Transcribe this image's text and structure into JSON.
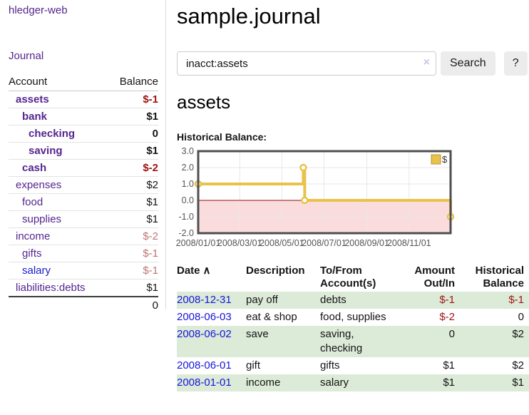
{
  "app": {
    "brand": "hledger-web"
  },
  "sidebar": {
    "journal_link": "Journal",
    "accounts": {
      "header": {
        "account": "Account",
        "balance": "Balance"
      },
      "rows": [
        {
          "name": "assets",
          "balance": "$-1",
          "level": 1,
          "bold": true,
          "negative": "strong"
        },
        {
          "name": "bank",
          "balance": "$1",
          "level": 2,
          "bold": true,
          "negative": null
        },
        {
          "name": "checking",
          "balance": "0",
          "level": 3,
          "bold": true,
          "negative": null
        },
        {
          "name": "saving",
          "balance": "$1",
          "level": 3,
          "bold": true,
          "negative": null
        },
        {
          "name": "cash",
          "balance": "$-2",
          "level": 2,
          "bold": true,
          "negative": "strong"
        },
        {
          "name": "expenses",
          "balance": "$2",
          "level": 1,
          "bold": false,
          "negative": null
        },
        {
          "name": "food",
          "balance": "$1",
          "level": 2,
          "bold": false,
          "negative": null
        },
        {
          "name": "supplies",
          "balance": "$1",
          "level": 2,
          "bold": false,
          "negative": null
        },
        {
          "name": "income",
          "balance": "$-2",
          "level": 1,
          "bold": false,
          "negative": "soft"
        },
        {
          "name": "gifts",
          "balance": "$-1",
          "level": 2,
          "bold": false,
          "negative": "soft"
        },
        {
          "name": "salary",
          "balance": "$-1",
          "level": 2,
          "bold": false,
          "negative": "soft",
          "link_style": "blue"
        },
        {
          "name": "liabilities:debts",
          "balance": "$1",
          "level": 1,
          "bold": false,
          "negative": null
        }
      ],
      "total": "0"
    }
  },
  "main": {
    "title": "sample.journal",
    "search": {
      "value": "inacct:assets",
      "search_button": "Search",
      "help_button": "?"
    },
    "account_heading": "assets",
    "chart_title": "Historical Balance:"
  },
  "register": {
    "headers": {
      "date": "Date",
      "description": "Description",
      "accounts": "To/From Account(s)",
      "amount": "Amount Out/In",
      "balance": "Historical Balance"
    },
    "rows": [
      {
        "date": "2008-12-31",
        "description": "pay off",
        "accounts": "debts",
        "amount": "$-1",
        "balance": "$-1"
      },
      {
        "date": "2008-06-03",
        "description": "eat & shop",
        "accounts": "food, supplies",
        "amount": "$-2",
        "balance": "0"
      },
      {
        "date": "2008-06-02",
        "description": "save",
        "accounts": "saving, checking",
        "amount": "0",
        "balance": "$2"
      },
      {
        "date": "2008-06-01",
        "description": "gift",
        "accounts": "gifts",
        "amount": "$1",
        "balance": "$2"
      },
      {
        "date": "2008-01-01",
        "description": "income",
        "accounts": "salary",
        "amount": "$1",
        "balance": "$1"
      }
    ]
  },
  "icons": {
    "sort_asc": "∧",
    "clear": "×"
  },
  "chart_data": {
    "type": "line",
    "step": true,
    "title": "Historical Balance",
    "x_start": "2008-01-01",
    "x_end": "2008-12-31",
    "series": [
      {
        "name": "$",
        "points": [
          [
            "2008-01-01",
            1.0
          ],
          [
            "2008-06-01",
            2.0
          ],
          [
            "2008-06-03",
            0.0
          ],
          [
            "2008-12-31",
            -1.0
          ]
        ]
      }
    ],
    "ylim": [
      -2.0,
      3.0
    ],
    "yticks": [
      3.0,
      2.0,
      1.0,
      0.0,
      -1.0,
      -2.0
    ],
    "xticks": [
      "2008/01/01",
      "2008/03/01",
      "2008/05/01",
      "2008/07/01",
      "2008/09/01",
      "2008/11/01"
    ],
    "legend": {
      "position": "top-right"
    },
    "grid": true,
    "colors": {
      "line": "#e9c24b",
      "marker_fill": "#ffffff",
      "negative_fill": "#fbdcdc",
      "zero_line": "#8e1010",
      "border": "#4e4e4e",
      "grid": "#e7e7e7",
      "axis_text": "#545454",
      "legend_swatch_border": "#b8962e"
    }
  },
  "colors": {
    "link_purple": "#54268e",
    "link_blue": "#1919d2",
    "negative_strong": "#9e1414",
    "negative_soft": "#c07474",
    "row_shade_green": "#dcead8",
    "button_bg": "#ececec"
  }
}
